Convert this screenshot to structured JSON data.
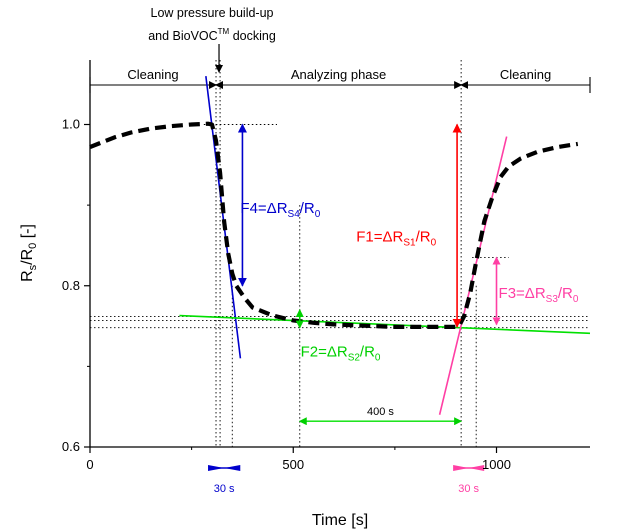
{
  "chart_data": {
    "type": "line",
    "xlabel": "Time [s]",
    "ylabel": {
      "main": "R",
      "s1": "s",
      "mid": "/R",
      "s2": "0",
      "tail": " [-]"
    },
    "xlim": [
      0,
      1230
    ],
    "ylim": [
      0.6,
      1.08
    ],
    "x_ticks": [
      0,
      500,
      1000
    ],
    "y_ticks": [
      0.6,
      0.8,
      1.0
    ],
    "x_tick_labels": [
      "0",
      "500",
      "1000"
    ],
    "y_tick_labels": [
      "0.6",
      "0.8",
      "1.0"
    ],
    "grid": false,
    "series": [
      {
        "color": "#000000",
        "x": [
          0,
          30,
          60,
          100,
          150,
          200,
          250,
          290,
          300,
          310,
          320,
          330,
          340,
          350,
          360,
          380,
          400,
          450,
          500,
          550,
          600,
          650,
          700,
          750,
          800,
          850,
          880,
          900,
          910,
          920,
          935,
          950,
          970,
          990,
          1010,
          1030,
          1060,
          1100,
          1150,
          1200
        ],
        "y": [
          0.972,
          0.978,
          0.984,
          0.99,
          0.995,
          0.998,
          1.0,
          1.001,
          1.0,
          0.98,
          0.94,
          0.88,
          0.84,
          0.815,
          0.8,
          0.785,
          0.773,
          0.763,
          0.757,
          0.754,
          0.752,
          0.751,
          0.75,
          0.749,
          0.749,
          0.749,
          0.749,
          0.749,
          0.752,
          0.762,
          0.79,
          0.83,
          0.88,
          0.91,
          0.935,
          0.948,
          0.958,
          0.966,
          0.972,
          0.976
        ]
      }
    ],
    "tangent_lines": [
      {
        "name": "F4 tangent",
        "color": "#0000cc",
        "x": [
          285,
          370
        ],
        "y": [
          1.06,
          0.71
        ]
      },
      {
        "name": "F2 tangent",
        "color": "#00e000",
        "x": [
          220,
          1230
        ],
        "y": [
          0.763,
          0.741
        ]
      },
      {
        "name": "F3 tangent",
        "color": "#ff3fa4",
        "x": [
          860,
          1025
        ],
        "y": [
          0.64,
          0.985
        ]
      }
    ],
    "phases": [
      {
        "label": "Cleaning",
        "x0": 0,
        "x1": 310
      },
      {
        "label": "Analyzing phase",
        "x0": 310,
        "x1": 913
      },
      {
        "label": "Cleaning",
        "x0": 913,
        "x1": 1230
      }
    ],
    "top_annotation": {
      "line1": "Low pressure build-up",
      "line2_prefix": "and BioVOC",
      "line2_sup": "TM",
      "line2_suffix": " docking",
      "x": 310
    },
    "vertical_markers": [
      {
        "x": 310,
        "y_top": 1.08,
        "y_bottom": 0.6
      },
      {
        "x": 320,
        "y_top": 1.08,
        "y_bottom": 0.6
      },
      {
        "x": 350,
        "y_top": 0.8,
        "y_bottom": 0.6
      },
      {
        "x": 516,
        "y_top": 0.9,
        "y_bottom": 0.6
      },
      {
        "x": 913,
        "y_top": 1.08,
        "y_bottom": 0.6
      },
      {
        "x": 950,
        "y_top": 0.8,
        "y_bottom": 0.6
      }
    ],
    "horizontal_markers": [
      {
        "y": 1.0,
        "x0": 280,
        "x1": 460
      },
      {
        "y": 0.762,
        "x0": 0,
        "x1": 1230
      },
      {
        "y": 0.757,
        "x0": 0,
        "x1": 1230
      },
      {
        "y": 0.748,
        "x0": 0,
        "x1": 1230
      },
      {
        "y": 0.835,
        "x0": 940,
        "x1": 1030
      }
    ],
    "measures": [
      {
        "id": "F4",
        "text": "F4=ΔR",
        "sub": "S4",
        "tail": "/R",
        "sub2": "0",
        "color": "#0000cc",
        "x": 375,
        "y_top": 1.0,
        "y_bottom": 0.8,
        "label_x": 370,
        "label_y": 0.89
      },
      {
        "id": "F1",
        "text": "F1=ΔR",
        "sub": "S1",
        "tail": "/R",
        "sub2": "0",
        "color": "#ff0000",
        "x": 903,
        "y_top": 1.0,
        "y_bottom": 0.749,
        "label_x": 655,
        "label_y": 0.855
      },
      {
        "id": "F2",
        "text": "F2=ΔR",
        "sub": "S2",
        "tail": "/R",
        "sub2": "0",
        "color": "#00d000",
        "x": 516,
        "y_top": 0.77,
        "y_bottom": 0.748,
        "label_x": 518,
        "label_y": 0.712
      },
      {
        "id": "F3",
        "text": "F3=ΔR",
        "sub": "S3",
        "tail": "/R",
        "sub2": "0",
        "color": "#ff3fa4",
        "x": 1000,
        "y_top": 0.835,
        "y_bottom": 0.752,
        "label_x": 1005,
        "label_y": 0.785
      }
    ],
    "intervals": [
      {
        "label": "400 s",
        "color": "#00e000",
        "x0": 516,
        "x1": 913,
        "y": 0.632,
        "below_axis": false
      },
      {
        "label": "30 s",
        "color": "#0000cc",
        "x0": 310,
        "x1": 350,
        "y": 0.55,
        "below_axis": true
      },
      {
        "label": "30 s",
        "color": "#ff3fa4",
        "x0": 913,
        "x1": 950,
        "y": 0.55,
        "below_axis": true
      }
    ]
  }
}
